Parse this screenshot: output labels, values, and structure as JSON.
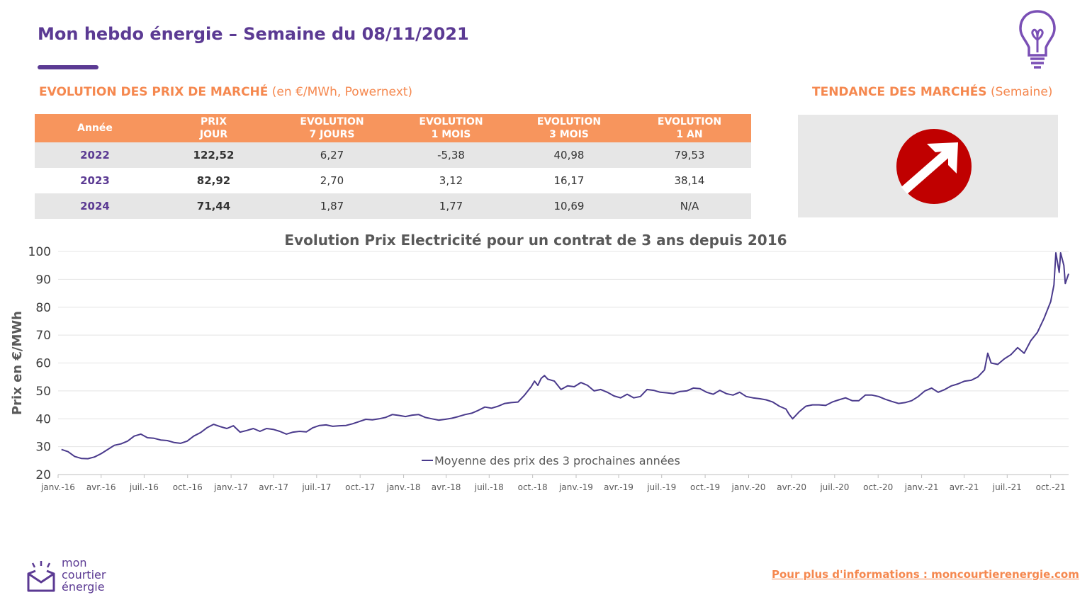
{
  "header": {
    "title": "Mon hebdo énergie – Semaine du 08/11/2021"
  },
  "market_prices": {
    "heading_bold": "EVOLUTION DES PRIX DE MARCHÉ",
    "heading_note": " (en €/MWh, Powernext)",
    "columns": [
      {
        "line1": "Année",
        "line2": ""
      },
      {
        "line1": "PRIX",
        "line2": "JOUR"
      },
      {
        "line1": "EVOLUTION",
        "line2": "7 JOURS"
      },
      {
        "line1": "EVOLUTION",
        "line2": "1 MOIS"
      },
      {
        "line1": "EVOLUTION",
        "line2": "3 MOIS"
      },
      {
        "line1": "EVOLUTION",
        "line2": "1 AN"
      }
    ],
    "rows": [
      {
        "year": "2022",
        "jour": "122,52",
        "j7": "6,27",
        "m1": "-5,38",
        "m3": "40,98",
        "a1": "79,53"
      },
      {
        "year": "2023",
        "jour": "82,92",
        "j7": "2,70",
        "m1": "3,12",
        "m3": "16,17",
        "a1": "38,14"
      },
      {
        "year": "2024",
        "jour": "71,44",
        "j7": "1,87",
        "m1": "1,77",
        "m3": "10,69",
        "a1": "N/A"
      }
    ]
  },
  "trend": {
    "heading_bold": "TENDANCE DES MARCHÉS",
    "heading_note": " (Semaine)",
    "direction": "up-right-arrow-icon",
    "circle_color": "#c00000"
  },
  "colors": {
    "brand_purple": "#5b3a93",
    "accent_orange": "#f5884f",
    "table_header": "#f7955d",
    "series_line": "#4a3a8c"
  },
  "chart_data": {
    "type": "line",
    "title": "Evolution Prix Electricité pour un contrat de 3 ans depuis 2016",
    "xlabel": "",
    "ylabel": "Prix en €/MWh",
    "ylim": [
      20,
      100
    ],
    "yticks": [
      20,
      30,
      40,
      50,
      60,
      70,
      80,
      90,
      100
    ],
    "xrange": [
      "2016-01-01",
      "2021-11-08"
    ],
    "xticks": [
      {
        "date": "2016-01-01",
        "label": "janv.-16"
      },
      {
        "date": "2016-04-01",
        "label": "avr.-16"
      },
      {
        "date": "2016-07-01",
        "label": "juil.-16"
      },
      {
        "date": "2016-10-01",
        "label": "oct.-16"
      },
      {
        "date": "2017-01-01",
        "label": "janv.-17"
      },
      {
        "date": "2017-04-01",
        "label": "avr.-17"
      },
      {
        "date": "2017-07-01",
        "label": "juil.-17"
      },
      {
        "date": "2017-10-01",
        "label": "oct.-17"
      },
      {
        "date": "2018-01-01",
        "label": "janv.-18"
      },
      {
        "date": "2018-04-01",
        "label": "avr.-18"
      },
      {
        "date": "2018-07-01",
        "label": "juil.-18"
      },
      {
        "date": "2018-10-01",
        "label": "oct.-18"
      },
      {
        "date": "2019-01-01",
        "label": "janv.-19"
      },
      {
        "date": "2019-04-01",
        "label": "avr.-19"
      },
      {
        "date": "2019-07-01",
        "label": "juil.-19"
      },
      {
        "date": "2019-10-01",
        "label": "oct.-19"
      },
      {
        "date": "2020-01-01",
        "label": "janv.-20"
      },
      {
        "date": "2020-04-01",
        "label": "avr.-20"
      },
      {
        "date": "2020-07-01",
        "label": "juil.-20"
      },
      {
        "date": "2020-10-01",
        "label": "oct.-20"
      },
      {
        "date": "2021-01-01",
        "label": "janv.-21"
      },
      {
        "date": "2021-04-01",
        "label": "avr.-21"
      },
      {
        "date": "2021-07-01",
        "label": "juil.-21"
      },
      {
        "date": "2021-10-01",
        "label": "oct.-21"
      }
    ],
    "grid": true,
    "legend_position": "bottom-center",
    "series": [
      {
        "name": "Moyenne des prix des 3 prochaines années",
        "color": "#4a3a8c",
        "points": [
          [
            "2016-01-08",
            29.0
          ],
          [
            "2016-01-22",
            28.2
          ],
          [
            "2016-02-05",
            26.5
          ],
          [
            "2016-02-19",
            25.8
          ],
          [
            "2016-03-04",
            25.7
          ],
          [
            "2016-03-18",
            26.3
          ],
          [
            "2016-04-01",
            27.5
          ],
          [
            "2016-04-15",
            29.0
          ],
          [
            "2016-04-29",
            30.5
          ],
          [
            "2016-05-13",
            31.0
          ],
          [
            "2016-05-27",
            32.0
          ],
          [
            "2016-06-10",
            33.8
          ],
          [
            "2016-06-24",
            34.5
          ],
          [
            "2016-07-08",
            33.2
          ],
          [
            "2016-07-22",
            33.0
          ],
          [
            "2016-08-05",
            32.4
          ],
          [
            "2016-08-19",
            32.2
          ],
          [
            "2016-09-02",
            31.5
          ],
          [
            "2016-09-16",
            31.2
          ],
          [
            "2016-09-30",
            32.0
          ],
          [
            "2016-10-14",
            33.8
          ],
          [
            "2016-10-28",
            35.0
          ],
          [
            "2016-11-11",
            36.8
          ],
          [
            "2016-11-25",
            38.0
          ],
          [
            "2016-12-09",
            37.2
          ],
          [
            "2016-12-23",
            36.5
          ],
          [
            "2017-01-06",
            37.5
          ],
          [
            "2017-01-20",
            35.2
          ],
          [
            "2017-02-03",
            35.8
          ],
          [
            "2017-02-17",
            36.5
          ],
          [
            "2017-03-03",
            35.5
          ],
          [
            "2017-03-17",
            36.5
          ],
          [
            "2017-03-31",
            36.2
          ],
          [
            "2017-04-14",
            35.5
          ],
          [
            "2017-04-28",
            34.5
          ],
          [
            "2017-05-12",
            35.2
          ],
          [
            "2017-05-26",
            35.5
          ],
          [
            "2017-06-09",
            35.3
          ],
          [
            "2017-06-23",
            36.8
          ],
          [
            "2017-07-07",
            37.6
          ],
          [
            "2017-07-21",
            37.8
          ],
          [
            "2017-08-04",
            37.3
          ],
          [
            "2017-08-18",
            37.5
          ],
          [
            "2017-09-01",
            37.6
          ],
          [
            "2017-09-15",
            38.2
          ],
          [
            "2017-09-29",
            39.0
          ],
          [
            "2017-10-13",
            39.8
          ],
          [
            "2017-10-27",
            39.6
          ],
          [
            "2017-11-10",
            40.0
          ],
          [
            "2017-11-24",
            40.5
          ],
          [
            "2017-12-08",
            41.5
          ],
          [
            "2017-12-22",
            41.2
          ],
          [
            "2018-01-05",
            40.8
          ],
          [
            "2018-01-19",
            41.3
          ],
          [
            "2018-02-02",
            41.5
          ],
          [
            "2018-02-16",
            40.5
          ],
          [
            "2018-03-02",
            40.0
          ],
          [
            "2018-03-16",
            39.5
          ],
          [
            "2018-03-30",
            39.8
          ],
          [
            "2018-04-13",
            40.2
          ],
          [
            "2018-04-27",
            40.8
          ],
          [
            "2018-05-11",
            41.5
          ],
          [
            "2018-05-25",
            42.0
          ],
          [
            "2018-06-08",
            43.0
          ],
          [
            "2018-06-22",
            44.2
          ],
          [
            "2018-07-06",
            43.8
          ],
          [
            "2018-07-20",
            44.5
          ],
          [
            "2018-08-03",
            45.5
          ],
          [
            "2018-08-17",
            45.8
          ],
          [
            "2018-08-31",
            46.0
          ],
          [
            "2018-09-14",
            48.5
          ],
          [
            "2018-09-28",
            51.5
          ],
          [
            "2018-10-05",
            53.5
          ],
          [
            "2018-10-12",
            52.0
          ],
          [
            "2018-10-19",
            54.5
          ],
          [
            "2018-10-26",
            55.5
          ],
          [
            "2018-11-02",
            54.2
          ],
          [
            "2018-11-16",
            53.5
          ],
          [
            "2018-11-30",
            50.5
          ],
          [
            "2018-12-14",
            51.8
          ],
          [
            "2018-12-28",
            51.5
          ],
          [
            "2019-01-11",
            53.0
          ],
          [
            "2019-01-25",
            52.0
          ],
          [
            "2019-02-08",
            50.0
          ],
          [
            "2019-02-22",
            50.5
          ],
          [
            "2019-03-08",
            49.5
          ],
          [
            "2019-03-22",
            48.2
          ],
          [
            "2019-04-05",
            47.5
          ],
          [
            "2019-04-19",
            48.8
          ],
          [
            "2019-05-03",
            47.5
          ],
          [
            "2019-05-17",
            48.0
          ],
          [
            "2019-05-31",
            50.5
          ],
          [
            "2019-06-14",
            50.2
          ],
          [
            "2019-06-28",
            49.5
          ],
          [
            "2019-07-12",
            49.3
          ],
          [
            "2019-07-26",
            49.0
          ],
          [
            "2019-08-09",
            49.8
          ],
          [
            "2019-08-23",
            50.0
          ],
          [
            "2019-09-06",
            51.0
          ],
          [
            "2019-09-20",
            50.8
          ],
          [
            "2019-10-04",
            49.5
          ],
          [
            "2019-10-18",
            48.8
          ],
          [
            "2019-11-01",
            50.2
          ],
          [
            "2019-11-15",
            49.0
          ],
          [
            "2019-11-29",
            48.5
          ],
          [
            "2019-12-13",
            49.5
          ],
          [
            "2019-12-27",
            48.0
          ],
          [
            "2020-01-10",
            47.5
          ],
          [
            "2020-01-24",
            47.2
          ],
          [
            "2020-02-07",
            46.8
          ],
          [
            "2020-02-21",
            46.0
          ],
          [
            "2020-03-06",
            44.5
          ],
          [
            "2020-03-20",
            43.5
          ],
          [
            "2020-03-27",
            41.5
          ],
          [
            "2020-04-03",
            40.0
          ],
          [
            "2020-04-17",
            42.5
          ],
          [
            "2020-05-01",
            44.5
          ],
          [
            "2020-05-15",
            45.0
          ],
          [
            "2020-05-29",
            45.0
          ],
          [
            "2020-06-12",
            44.8
          ],
          [
            "2020-06-26",
            46.0
          ],
          [
            "2020-07-10",
            46.8
          ],
          [
            "2020-07-24",
            47.5
          ],
          [
            "2020-08-07",
            46.5
          ],
          [
            "2020-08-21",
            46.5
          ],
          [
            "2020-09-04",
            48.5
          ],
          [
            "2020-09-18",
            48.5
          ],
          [
            "2020-10-02",
            48.0
          ],
          [
            "2020-10-16",
            47.0
          ],
          [
            "2020-10-30",
            46.2
          ],
          [
            "2020-11-13",
            45.5
          ],
          [
            "2020-11-27",
            45.8
          ],
          [
            "2020-12-11",
            46.5
          ],
          [
            "2020-12-25",
            48.0
          ],
          [
            "2021-01-08",
            50.0
          ],
          [
            "2021-01-22",
            51.0
          ],
          [
            "2021-02-05",
            49.5
          ],
          [
            "2021-02-19",
            50.5
          ],
          [
            "2021-03-05",
            51.8
          ],
          [
            "2021-03-19",
            52.5
          ],
          [
            "2021-04-02",
            53.5
          ],
          [
            "2021-04-16",
            53.8
          ],
          [
            "2021-04-30",
            55.0
          ],
          [
            "2021-05-14",
            57.5
          ],
          [
            "2021-05-21",
            63.5
          ],
          [
            "2021-05-28",
            60.0
          ],
          [
            "2021-06-11",
            59.5
          ],
          [
            "2021-06-25",
            61.5
          ],
          [
            "2021-07-09",
            63.0
          ],
          [
            "2021-07-23",
            65.5
          ],
          [
            "2021-08-06",
            63.5
          ],
          [
            "2021-08-20",
            68.0
          ],
          [
            "2021-09-03",
            71.0
          ],
          [
            "2021-09-17",
            76.0
          ],
          [
            "2021-10-01",
            82.0
          ],
          [
            "2021-10-08",
            88.0
          ],
          [
            "2021-10-12",
            99.5
          ],
          [
            "2021-10-19",
            92.5
          ],
          [
            "2021-10-22",
            99.5
          ],
          [
            "2021-10-29",
            95.0
          ],
          [
            "2021-11-01",
            88.5
          ],
          [
            "2021-11-08",
            92.0
          ]
        ]
      }
    ]
  },
  "footer": {
    "logo_line1": "mon",
    "logo_line2": "courtier",
    "logo_line3": "énergie",
    "link_text": "Pour plus d'informations : moncourtierenergie.com"
  }
}
